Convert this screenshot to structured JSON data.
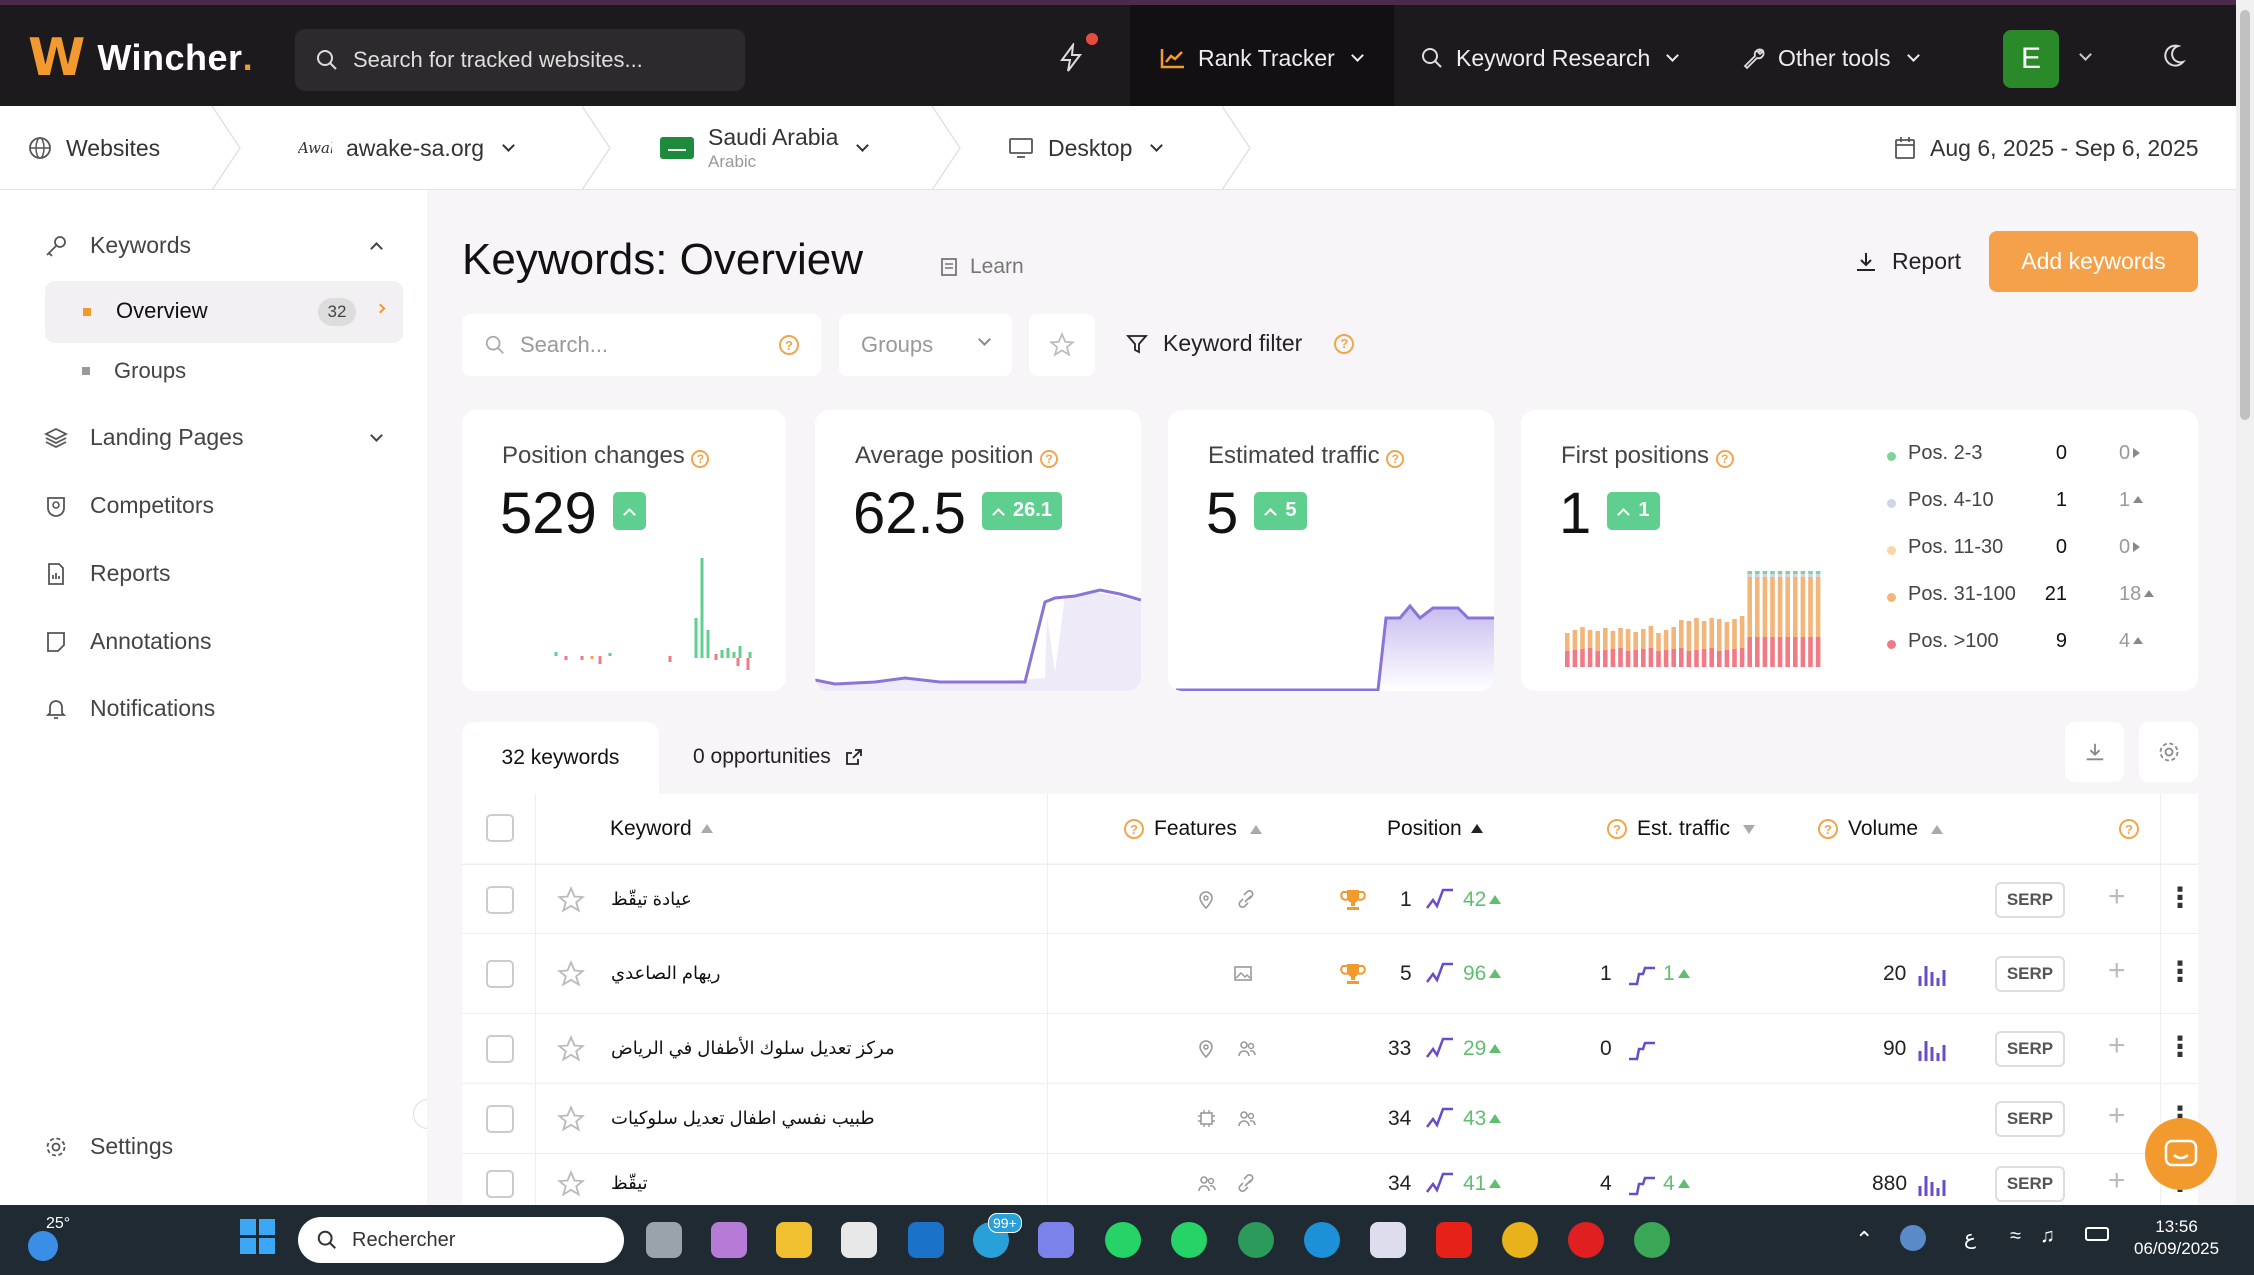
{
  "app": {
    "name_main": "Wincher",
    "name_dot": "."
  },
  "topbar": {
    "search_placeholder": "Search for tracked websites...",
    "nav": [
      {
        "label": "Rank Tracker",
        "icon": "chart-line-icon",
        "active": true
      },
      {
        "label": "Keyword Research",
        "icon": "search-icon"
      },
      {
        "label": "Other tools",
        "icon": "wrench-icon"
      }
    ],
    "avatar_letter": "E"
  },
  "crumbs": {
    "websites": "Websites",
    "site": "awake-sa.org",
    "site_logo_text": "Awake",
    "country": "Saudi Arabia",
    "language": "Arabic",
    "device": "Desktop",
    "date_range": "Aug 6, 2025 - Sep 6, 2025"
  },
  "sidebar": {
    "keywords": "Keywords",
    "overview": "Overview",
    "overview_count": "32",
    "groups": "Groups",
    "landing_pages": "Landing Pages",
    "competitors": "Competitors",
    "reports": "Reports",
    "annotations": "Annotations",
    "notifications": "Notifications",
    "settings": "Settings"
  },
  "page": {
    "title": "Keywords: Overview",
    "learn": "Learn",
    "report": "Report",
    "add_keywords": "Add keywords",
    "search_placeholder": "Search...",
    "groups_placeholder": "Groups",
    "keyword_filter": "Keyword filter"
  },
  "cards": {
    "position_changes": {
      "label": "Position changes",
      "value": "529"
    },
    "average_position": {
      "label": "Average position",
      "value": "62.5",
      "delta": "26.1"
    },
    "estimated_traffic": {
      "label": "Estimated traffic",
      "value": "5",
      "delta": "5"
    },
    "first_positions": {
      "label": "First positions",
      "value": "1",
      "delta": "1",
      "legend": [
        {
          "label": "Pos. 2-3",
          "value": "0",
          "change": "0",
          "dir": "flat",
          "color": "#7fd39a"
        },
        {
          "label": "Pos. 4-10",
          "value": "1",
          "change": "1",
          "dir": "up",
          "color": "#cfd5e6"
        },
        {
          "label": "Pos. 11-30",
          "value": "0",
          "change": "0",
          "dir": "flat",
          "color": "#f8d6a6"
        },
        {
          "label": "Pos. 31-100",
          "value": "21",
          "change": "18",
          "dir": "up",
          "color": "#f3b67a"
        },
        {
          "label": "Pos. >100",
          "value": "9",
          "change": "4",
          "dir": "up",
          "color": "#f07a86"
        }
      ]
    }
  },
  "tabs": {
    "keywords": "32 keywords",
    "opportunities": "0 opportunities"
  },
  "table": {
    "headers": {
      "keyword": "Keyword",
      "features": "Features",
      "position": "Position",
      "traffic": "Est. traffic",
      "volume": "Volume"
    },
    "serp_label": "SERP",
    "rows": [
      {
        "keyword": "عيادة تيقّظ",
        "features": [
          "pin-icon",
          "link-icon"
        ],
        "trophy": true,
        "position": "1",
        "change": "42",
        "traffic": "",
        "traffic_change": "",
        "volume": ""
      },
      {
        "keyword": "ريهام الصاعدي",
        "features": [
          "image-icon"
        ],
        "trophy": true,
        "position": "5",
        "change": "96",
        "traffic": "1",
        "traffic_change": "1",
        "volume": "20"
      },
      {
        "keyword": "مركز تعديل سلوك الأطفال في الرياض",
        "features": [
          "pin-icon",
          "people-icon"
        ],
        "trophy": false,
        "position": "33",
        "change": "29",
        "traffic": "0",
        "traffic_change": "",
        "volume": "90"
      },
      {
        "keyword": "طبيب نفسي اطفال تعديل سلوكيات",
        "features": [
          "chip-icon",
          "people-icon"
        ],
        "trophy": false,
        "position": "34",
        "change": "43",
        "traffic": "",
        "traffic_change": "",
        "volume": ""
      },
      {
        "keyword": "تيقّظ",
        "features": [
          "people-icon",
          "link-icon"
        ],
        "trophy": false,
        "position": "34",
        "change": "41",
        "traffic": "4",
        "traffic_change": "4",
        "volume": "880"
      }
    ]
  },
  "taskbar": {
    "weather": "25°",
    "search": "Rechercher",
    "badge": "99+",
    "time": "13:56",
    "date": "06/09/2025",
    "lang": "ع"
  }
}
